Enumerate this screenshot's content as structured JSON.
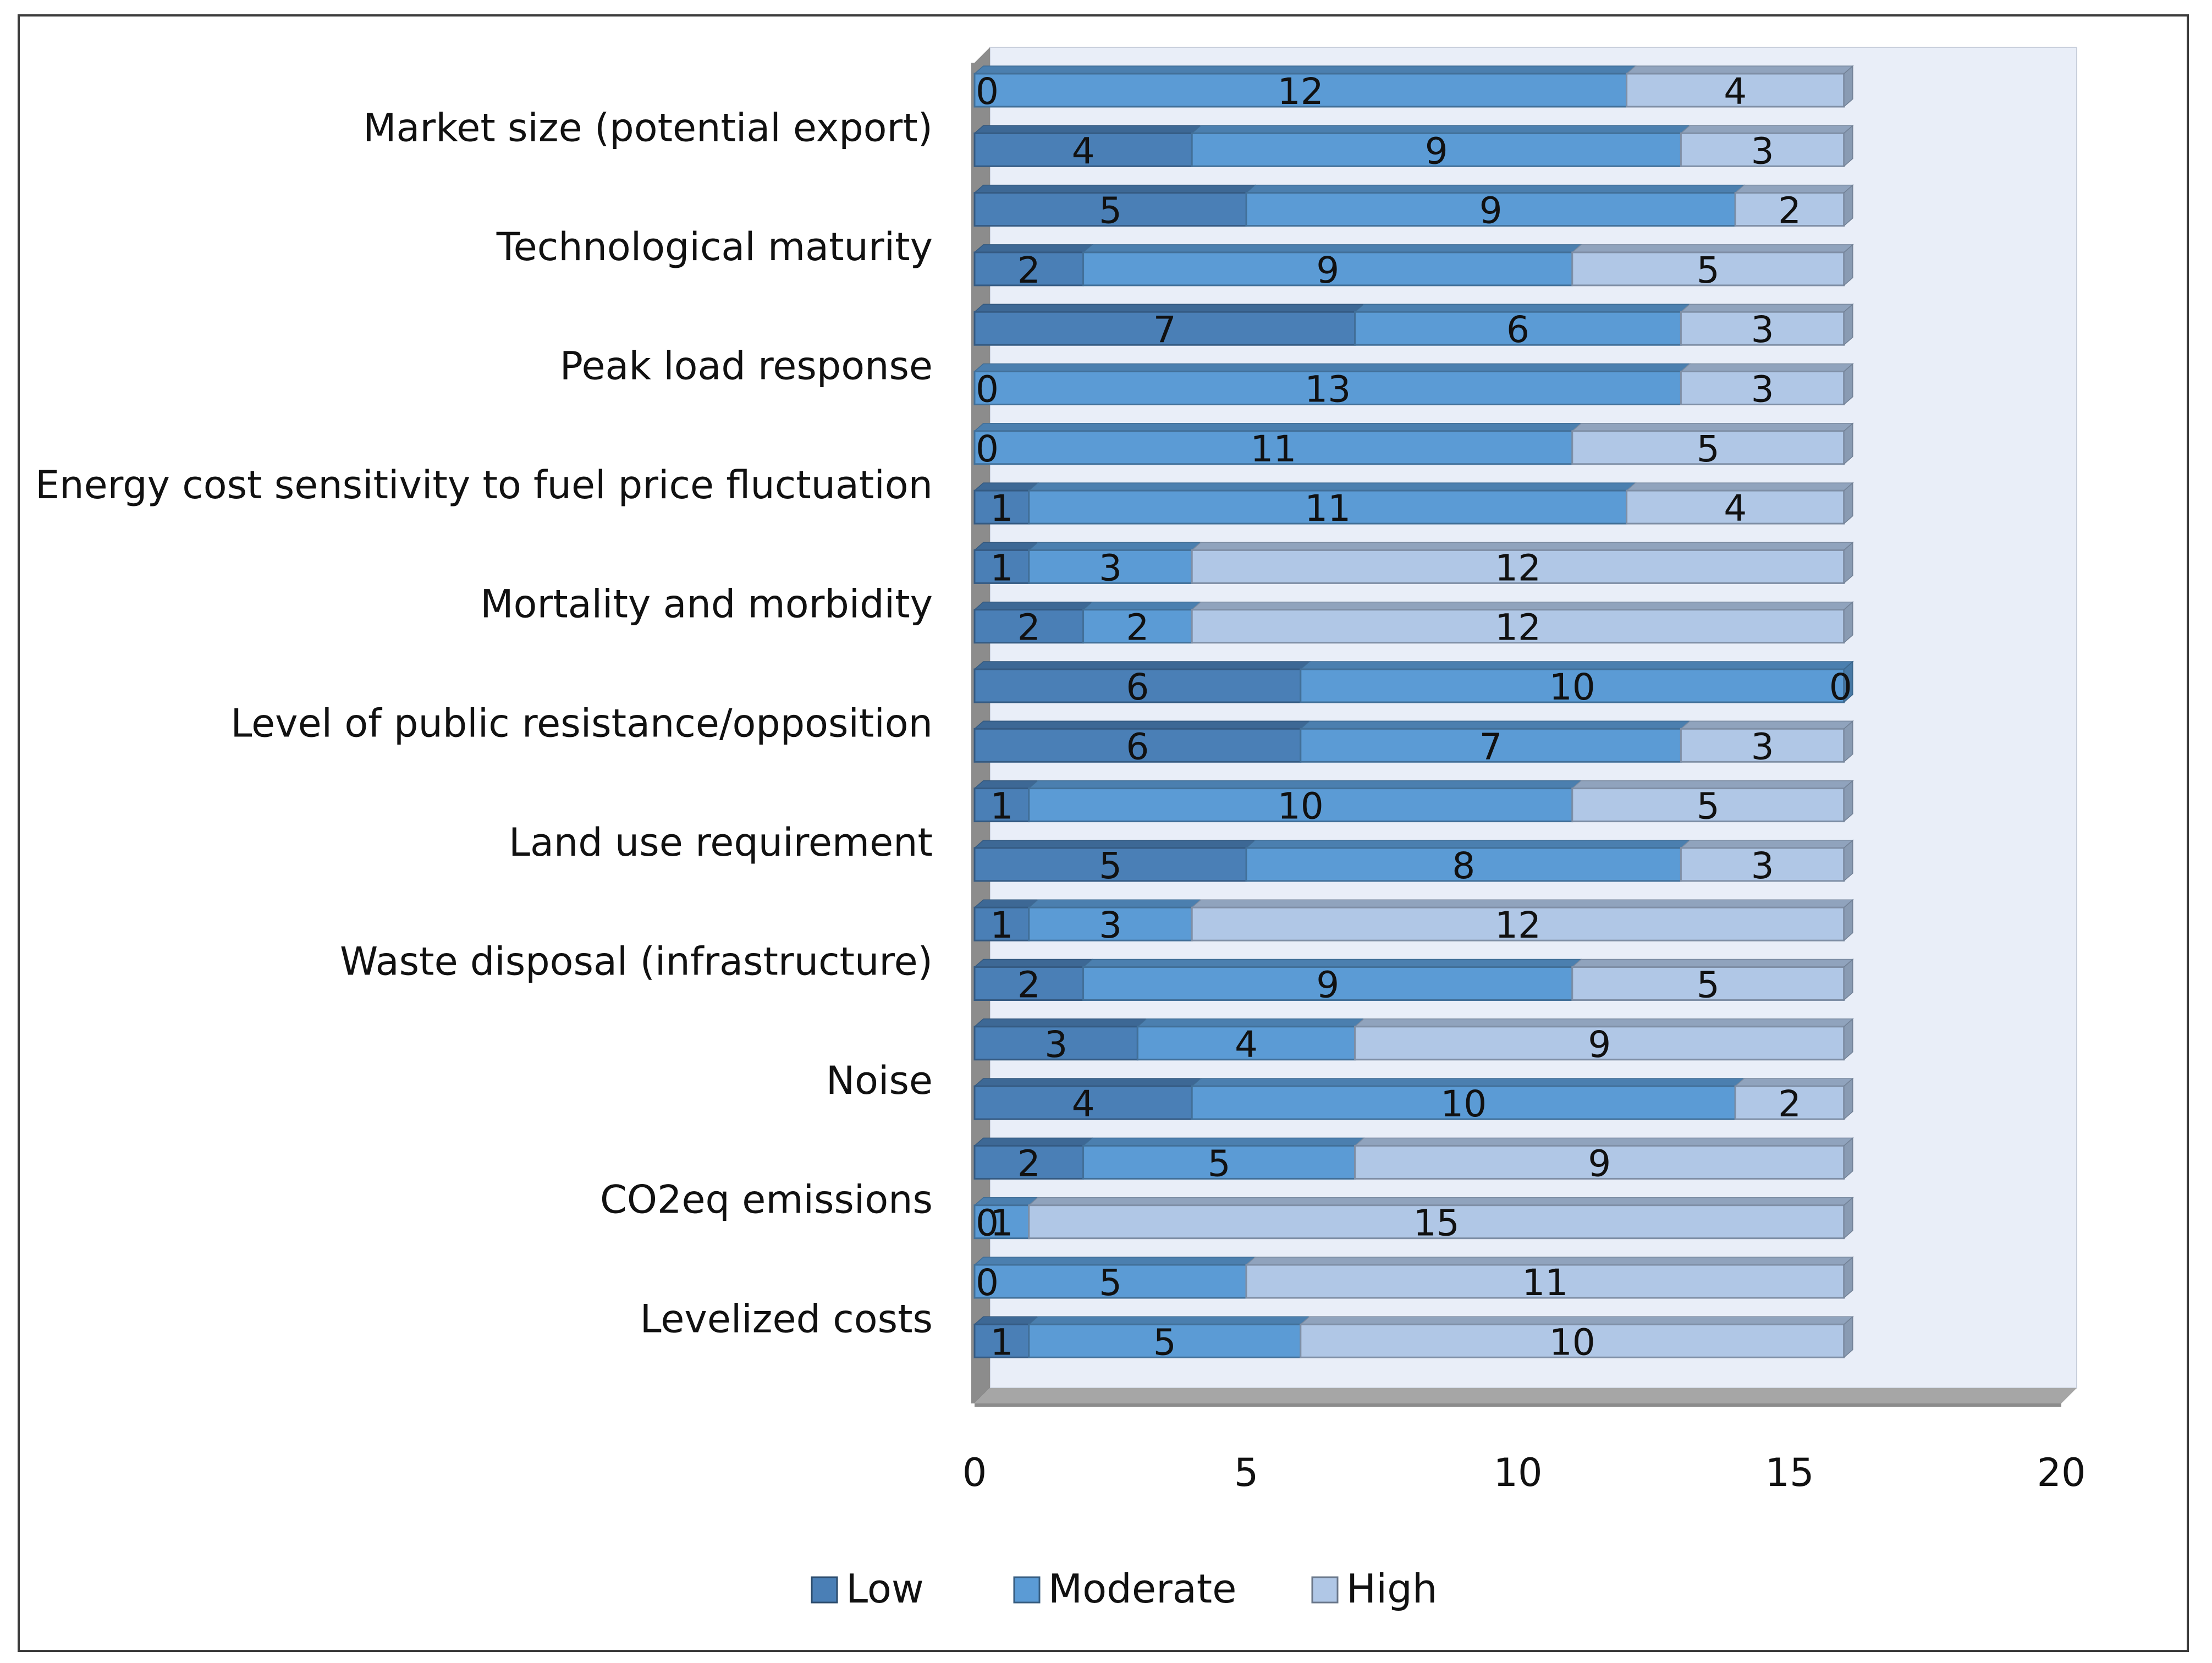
{
  "chart_data": {
    "type": "bar",
    "stacked": true,
    "orientation": "horizontal",
    "three_d": true,
    "title": "",
    "xlabel": "",
    "ylabel": "",
    "xlim": [
      0,
      20
    ],
    "x_ticks": [
      "0",
      "5",
      "10",
      "15",
      "20"
    ],
    "legend_position": "bottom-center",
    "categories_bottom_to_top": [
      "Levelized costs",
      "",
      "CO2eq emissions",
      "",
      "Noise",
      "",
      "Waste disposal (infrastructure)",
      "",
      "Land use requirement",
      "",
      "Level of public resistance/opposition",
      "",
      "Mortality and morbidity",
      "",
      "Energy cost sensitivity to fuel price fluctuation",
      "",
      "Peak load response",
      "",
      "Technological maturity",
      "",
      "Market size (potential export)",
      ""
    ],
    "series": [
      {
        "name": "Low",
        "color": "#4a7fb6",
        "values": [
          1,
          0,
          0,
          2,
          4,
          3,
          2,
          1,
          5,
          1,
          6,
          6,
          2,
          1,
          1,
          0,
          0,
          7,
          2,
          5,
          4,
          0
        ]
      },
      {
        "name": "Moderate",
        "color": "#5b9bd5",
        "values": [
          5,
          5,
          1,
          5,
          10,
          4,
          9,
          3,
          8,
          10,
          7,
          10,
          2,
          3,
          11,
          11,
          13,
          6,
          9,
          9,
          9,
          12
        ]
      },
      {
        "name": "High",
        "color": "#b0c7e6",
        "values": [
          10,
          11,
          15,
          9,
          2,
          9,
          5,
          12,
          3,
          5,
          3,
          0,
          12,
          12,
          4,
          5,
          3,
          3,
          5,
          2,
          3,
          4
        ]
      }
    ]
  }
}
